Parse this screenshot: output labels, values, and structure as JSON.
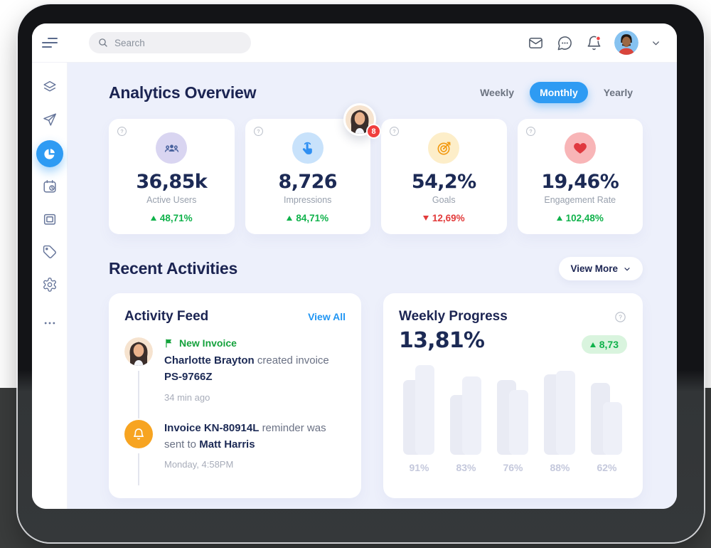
{
  "topbar": {
    "search_placeholder": "Search",
    "icons": [
      "envelope",
      "chat-bubble",
      "bell"
    ],
    "bell_has_notification_dot": true
  },
  "sidebar": {
    "active_color": "#2e9bf3",
    "items": [
      {
        "icon": "layers",
        "active": false
      },
      {
        "icon": "paper-plane",
        "active": false
      },
      {
        "icon": "pie-chart",
        "active": true
      },
      {
        "icon": "calendar-clock",
        "active": false
      },
      {
        "icon": "frame",
        "active": false
      },
      {
        "icon": "tag",
        "active": false
      },
      {
        "icon": "gear",
        "active": false
      },
      {
        "icon": "ellipsis",
        "active": false
      }
    ]
  },
  "analytics": {
    "title": "Analytics Overview",
    "tabs": [
      {
        "label": "Weekly",
        "active": false
      },
      {
        "label": "Monthly",
        "active": true
      },
      {
        "label": "Yearly",
        "active": false
      }
    ],
    "floating_avatar_badge": "8",
    "stats": [
      {
        "icon": "users",
        "icon_bg": "#d9d5f1",
        "value": "36,85k",
        "label": "Active Users",
        "delta": "48,71%",
        "trend": "up"
      },
      {
        "icon": "tap",
        "icon_bg": "#c8e2fb",
        "value": "8,726",
        "label": "Impressions",
        "delta": "84,71%",
        "trend": "up"
      },
      {
        "icon": "target",
        "icon_bg": "#fdeec9",
        "value": "54,2%",
        "label": "Goals",
        "delta": "12,69%",
        "trend": "down"
      },
      {
        "icon": "heart",
        "icon_bg": "#f8b5b7",
        "value": "19,46%",
        "label": "Engagement Rate",
        "delta": "102,48%",
        "trend": "up"
      }
    ]
  },
  "recent": {
    "title": "Recent Activities",
    "view_more": "View More"
  },
  "activity_feed": {
    "title": "Activity Feed",
    "view_all": "View All",
    "items": [
      {
        "tag": "New Invoice",
        "b1": "Charlotte Brayton",
        "mid": "created invoice",
        "b2": "PS-9766Z",
        "time": "34 min ago"
      },
      {
        "b1": "Invoice KN-80914L",
        "mid": "reminder was sent to",
        "b2": "Matt Harris",
        "time": "Monday, 4:58PM"
      }
    ]
  },
  "weekly_progress": {
    "title": "Weekly Progress",
    "value": "13,81%",
    "delta_badge": "8,73",
    "trend": "up"
  },
  "chart_data": {
    "type": "bar",
    "title": "Weekly Progress",
    "categories": [
      "91%",
      "83%",
      "76%",
      "88%",
      "62%"
    ],
    "values": [
      91,
      83,
      76,
      88,
      62
    ],
    "series": [
      {
        "name": "bar-back",
        "values": [
          83,
          67,
          83,
          90,
          80
        ]
      },
      {
        "name": "bar-front",
        "values": [
          100,
          87,
          72,
          94,
          59
        ]
      }
    ],
    "unit_note": "series values are bar heights as % of chart height; categories are the displayed labels",
    "bar_color_back": "#e9ebf4",
    "bar_color_front": "#eef0f8",
    "label_color": "#c4c8dc",
    "legend": "none",
    "grid": "off"
  },
  "colors": {
    "accent_blue": "#2e9bf3",
    "green": "#10b24b",
    "red": "#e23b3b",
    "navy_text": "#1b2452",
    "content_bg": "#edf0fb",
    "band": "#3a3c3c"
  }
}
